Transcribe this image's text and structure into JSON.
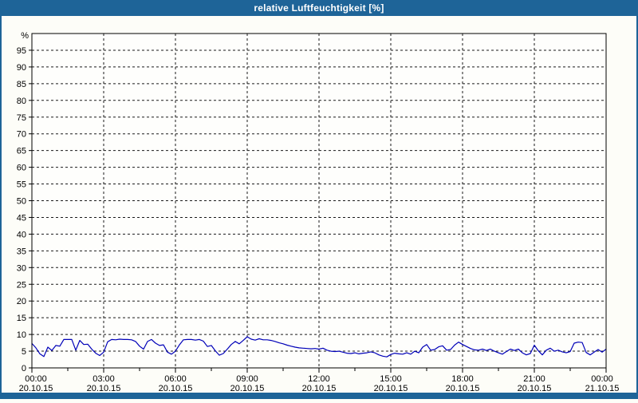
{
  "window": {
    "title": "relative Luftfeuchtigkeit [%]",
    "accent_color": "#1e6498",
    "plot_background": "#fefefc",
    "page_background": "#fdfdf8"
  },
  "chart_data": {
    "type": "line",
    "title": "relative Luftfeuchtigkeit [%]",
    "xlabel": "",
    "ylabel": "%",
    "ylim": [
      0,
      100
    ],
    "y_tick_step": 5,
    "y_tick_labels": [
      "0",
      "5",
      "10",
      "15",
      "20",
      "25",
      "30",
      "35",
      "40",
      "45",
      "50",
      "55",
      "60",
      "65",
      "70",
      "75",
      "80",
      "85",
      "90",
      "95"
    ],
    "x_range_hours": [
      0,
      24
    ],
    "x_major_tick_hours": 3,
    "x_minor_tick_hours": 1.5,
    "grid": {
      "style": "dashed",
      "color": "#1a1a1a",
      "vertical_at_hours": [
        3,
        6,
        9,
        12,
        15,
        18,
        21
      ]
    },
    "legend_position": "none",
    "x_tick_labels": [
      {
        "time": "00:00",
        "date": "20.10.15"
      },
      {
        "time": "03:00",
        "date": "20.10.15"
      },
      {
        "time": "06:00",
        "date": "20.10.15"
      },
      {
        "time": "09:00",
        "date": "20.10.15"
      },
      {
        "time": "12:00",
        "date": "20.10.15"
      },
      {
        "time": "15:00",
        "date": "20.10.15"
      },
      {
        "time": "18:00",
        "date": "20.10.15"
      },
      {
        "time": "21:00",
        "date": "20.10.15"
      },
      {
        "time": "00:00",
        "date": "21.10.15"
      }
    ],
    "series": [
      {
        "name": "relative Luftfeuchtigkeit",
        "unit": "%",
        "color": "#0000b8",
        "sample_interval_minutes": 10,
        "start_time": "20.10.15 00:00",
        "values": [
          7.3,
          6.0,
          4.2,
          3.4,
          6.2,
          5.2,
          6.7,
          6.5,
          8.5,
          8.5,
          8.5,
          5.3,
          8.2,
          7.0,
          7.1,
          5.6,
          4.4,
          3.7,
          4.7,
          7.8,
          8.5,
          8.4,
          8.6,
          8.5,
          8.5,
          8.4,
          7.9,
          6.5,
          5.6,
          7.9,
          8.5,
          7.4,
          6.7,
          6.9,
          4.7,
          4.1,
          5.0,
          6.9,
          8.4,
          8.5,
          8.5,
          8.3,
          8.5,
          8.0,
          6.4,
          6.7,
          5.1,
          3.8,
          4.3,
          5.6,
          7.0,
          7.9,
          7.2,
          8.2,
          9.3,
          8.6,
          8.3,
          8.7,
          8.4,
          8.4,
          8.2,
          7.9,
          7.5,
          7.2,
          6.8,
          6.5,
          6.2,
          6.0,
          5.9,
          5.8,
          5.7,
          5.8,
          5.6,
          5.9,
          5.3,
          5.0,
          4.9,
          5.0,
          4.7,
          4.4,
          4.3,
          4.5,
          4.2,
          4.4,
          4.5,
          4.8,
          4.5,
          3.9,
          3.5,
          3.3,
          4.0,
          4.4,
          4.2,
          4.1,
          4.5,
          4.1,
          5.0,
          4.5,
          6.2,
          7.0,
          5.3,
          5.5,
          6.3,
          6.6,
          5.3,
          5.5,
          6.8,
          7.7,
          7.0,
          6.4,
          5.8,
          5.4,
          5.3,
          5.6,
          5.2,
          5.6,
          5.0,
          4.5,
          4.1,
          4.9,
          5.6,
          5.2,
          5.6,
          4.5,
          3.9,
          4.3,
          6.8,
          5.1,
          3.9,
          5.3,
          5.9,
          5.0,
          5.3,
          4.8,
          4.5,
          4.9,
          7.4,
          7.7,
          7.6,
          4.6,
          3.9,
          4.7,
          5.5,
          4.7,
          5.6
        ]
      }
    ]
  }
}
